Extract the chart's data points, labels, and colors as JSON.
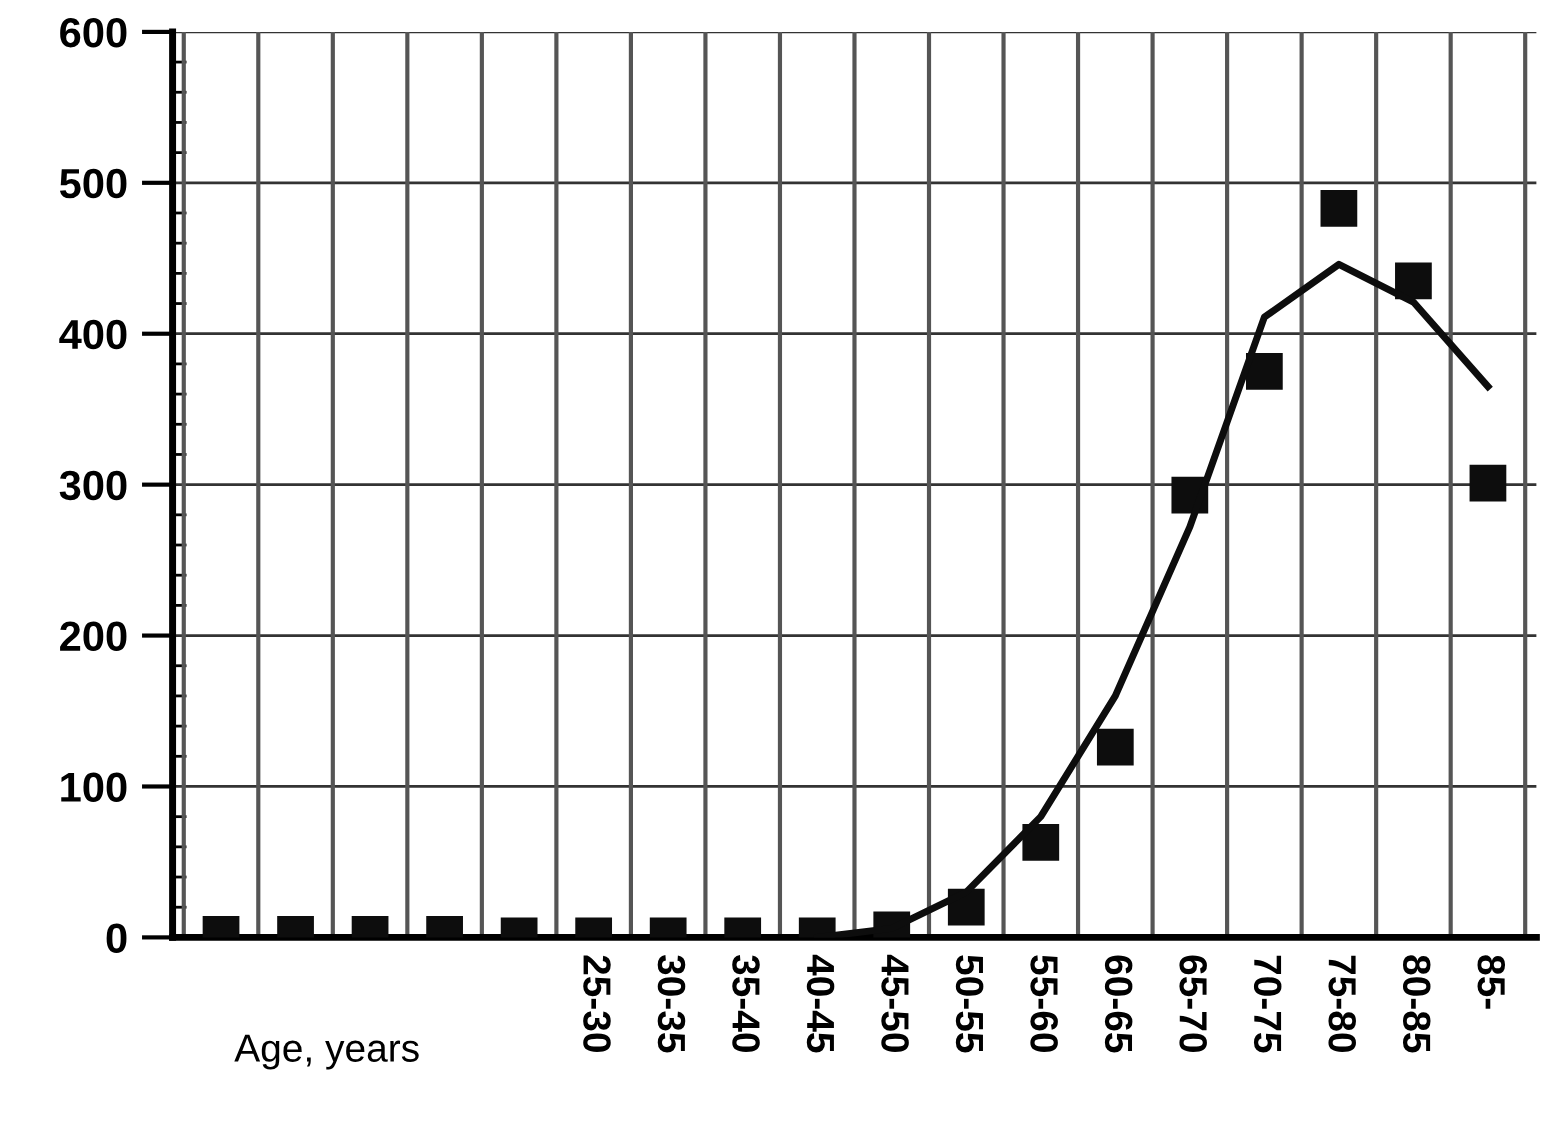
{
  "chart_data": {
    "type": "scatter",
    "categories": [
      null,
      null,
      null,
      null,
      null,
      "25-30",
      "30-35",
      "35-40",
      "40-45",
      "45-50",
      "50-55",
      "55-60",
      "60-65",
      "65-70",
      "70-75",
      "75-80",
      "80-85",
      "85-"
    ],
    "series": [
      {
        "color": "#0d0d0d",
        "marker": "square",
        "values": [
          2,
          2,
          2,
          2,
          1,
          1,
          1,
          1,
          1,
          5,
          20,
          63,
          126,
          293,
          375,
          483,
          435,
          301
        ]
      },
      {
        "type": "line",
        "color": "#0d0d0d",
        "marker": "none",
        "line_style": "solid",
        "values": [
          null,
          null,
          null,
          null,
          null,
          null,
          null,
          null,
          0,
          6,
          30,
          80,
          160,
          272,
          411,
          446,
          421,
          365
        ]
      }
    ],
    "ylim": [
      0,
      600
    ],
    "yticks": [
      0,
      {
        "value": 20,
        "label": null
      },
      {
        "value": 40,
        "label": null
      },
      {
        "value": 60,
        "label": null
      },
      {
        "value": 80,
        "label": null
      },
      100,
      {
        "value": 120,
        "label": null
      },
      {
        "value": 140,
        "label": null
      },
      {
        "value": 160,
        "label": null
      },
      {
        "value": 180,
        "label": null
      },
      200,
      {
        "value": 220,
        "label": null
      },
      {
        "value": 240,
        "label": null
      },
      {
        "value": 260,
        "label": null
      },
      {
        "value": 280,
        "label": null
      },
      300,
      {
        "value": 320,
        "label": null
      },
      {
        "value": 340,
        "label": null
      },
      {
        "value": 360,
        "label": null
      },
      {
        "value": 380,
        "label": null
      },
      400,
      {
        "value": 420,
        "label": null
      },
      {
        "value": 440,
        "label": null
      },
      {
        "value": 460,
        "label": null
      },
      {
        "value": 480,
        "label": null
      },
      500,
      {
        "value": 520,
        "label": null
      },
      {
        "value": 540,
        "label": null
      },
      {
        "value": 560,
        "label": null
      },
      {
        "value": 580,
        "label": null
      },
      600
    ],
    "grid": true,
    "annotations": [
      "Age, years"
    ]
  }
}
